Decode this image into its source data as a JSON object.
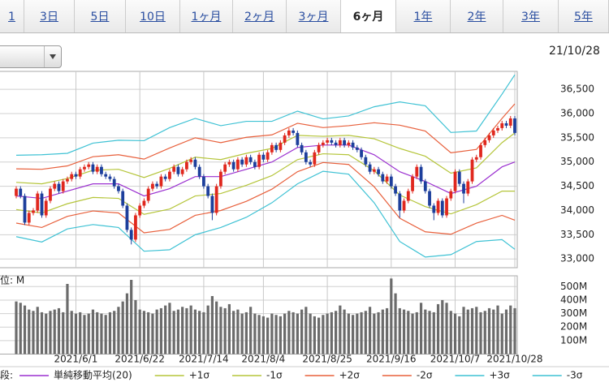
{
  "tabs": [
    {
      "label": "1",
      "selected": false
    },
    {
      "label": "3日",
      "selected": false
    },
    {
      "label": "5日",
      "selected": false
    },
    {
      "label": "10日",
      "selected": false
    },
    {
      "label": "1ヶ月",
      "selected": false
    },
    {
      "label": "2ヶ月",
      "selected": false
    },
    {
      "label": "3ヶ月",
      "selected": false
    },
    {
      "label": "6ヶ月",
      "selected": true
    },
    {
      "label": "1年",
      "selected": false
    },
    {
      "label": "2年",
      "selected": false
    },
    {
      "label": "3年",
      "selected": false
    },
    {
      "label": "5年",
      "selected": false
    }
  ],
  "date": "21/10/28",
  "chart_data": {
    "type": "candlestick",
    "categories": [
      null,
      null,
      null,
      null,
      null,
      null,
      null,
      null,
      null,
      null,
      null,
      null,
      null,
      null,
      "2021/6/1",
      null,
      null,
      null,
      null,
      null,
      null,
      null,
      null,
      null,
      null,
      null,
      null,
      null,
      null,
      "2021/6/22",
      null,
      null,
      null,
      null,
      null,
      null,
      null,
      null,
      null,
      null,
      null,
      null,
      null,
      null,
      "2021/7/14",
      null,
      null,
      null,
      null,
      null,
      null,
      null,
      null,
      null,
      null,
      null,
      null,
      null,
      "2021/8/4",
      null,
      null,
      null,
      null,
      null,
      null,
      null,
      null,
      null,
      null,
      null,
      null,
      null,
      null,
      "2021/8/25",
      null,
      null,
      null,
      null,
      null,
      null,
      null,
      null,
      null,
      null,
      null,
      null,
      null,
      null,
      "2021/9/16",
      null,
      null,
      null,
      null,
      null,
      null,
      null,
      null,
      null,
      null,
      null,
      null,
      null,
      null,
      "2021/10/7",
      null,
      null,
      null,
      null,
      null,
      null,
      null,
      null,
      null,
      null,
      null,
      null,
      null,
      "2021/10/28"
    ],
    "open": [
      34300,
      34450,
      34300,
      33750,
      33950,
      34000,
      34350,
      33900,
      34200,
      34450,
      34550,
      34400,
      34600,
      34650,
      34750,
      34700,
      34850,
      34900,
      34950,
      34800,
      34900,
      34750,
      34700,
      34650,
      34500,
      34400,
      34100,
      33600,
      33400,
      33900,
      34100,
      34200,
      34450,
      34550,
      34500,
      34700,
      34650,
      34800,
      34900,
      34750,
      34850,
      35000,
      35050,
      34900,
      34700,
      34500,
      34300,
      33950,
      34500,
      34800,
      34950,
      35000,
      34850,
      35050,
      34950,
      35100,
      35000,
      34900,
      35150,
      35050,
      35200,
      35350,
      35250,
      35400,
      35550,
      35650,
      35600,
      35350,
      35200,
      35000,
      34950,
      35200,
      35350,
      35400,
      35450,
      35400,
      35350,
      35450,
      35350,
      35400,
      35300,
      35250,
      35100,
      34950,
      34800,
      34850,
      34750,
      34600,
      34700,
      34500,
      34350,
      34000,
      34200,
      34400,
      34700,
      34900,
      34600,
      34400,
      34100,
      33950,
      34200,
      33900,
      34250,
      34400,
      34800,
      34550,
      34350,
      34600,
      35050,
      35100,
      35350,
      35450,
      35550,
      35650,
      35700,
      35800,
      35750,
      35900
    ],
    "high": [
      34500,
      34500,
      34350,
      34000,
      34050,
      34400,
      34400,
      34250,
      34500,
      34600,
      34600,
      34650,
      34700,
      34800,
      34800,
      34900,
      34950,
      35000,
      35000,
      34950,
      34950,
      34800,
      34750,
      34700,
      34550,
      34450,
      34150,
      33650,
      33950,
      34150,
      34250,
      34500,
      34600,
      34600,
      34750,
      34750,
      34850,
      34950,
      34950,
      34900,
      35050,
      35100,
      35100,
      34950,
      34750,
      34550,
      34350,
      34550,
      34850,
      35000,
      35050,
      35050,
      35100,
      35100,
      35150,
      35150,
      35050,
      35200,
      35200,
      35250,
      35400,
      35400,
      35450,
      35600,
      35700,
      35700,
      35650,
      35400,
      35250,
      35050,
      35250,
      35400,
      35450,
      35500,
      35500,
      35450,
      35500,
      35500,
      35450,
      35450,
      35350,
      35300,
      35150,
      35000,
      34900,
      34900,
      34800,
      34750,
      34750,
      34550,
      34400,
      34250,
      34450,
      34750,
      34950,
      34950,
      34650,
      34450,
      34150,
      34250,
      34250,
      34300,
      34450,
      34850,
      34850,
      34600,
      34650,
      35100,
      35150,
      35400,
      35500,
      35600,
      35700,
      35750,
      35850,
      35850,
      35950,
      35950
    ],
    "low": [
      34250,
      34250,
      33700,
      33700,
      33900,
      33950,
      33850,
      33850,
      34150,
      34400,
      34350,
      34350,
      34550,
      34600,
      34650,
      34650,
      34800,
      34850,
      34750,
      34750,
      34700,
      34650,
      34600,
      34450,
      34350,
      34050,
      33550,
      33300,
      33350,
      33850,
      34050,
      34150,
      34400,
      34450,
      34450,
      34600,
      34600,
      34750,
      34700,
      34700,
      34800,
      34950,
      34850,
      34650,
      34450,
      34250,
      33800,
      33900,
      34450,
      34750,
      34900,
      34800,
      34800,
      34900,
      34900,
      34950,
      34850,
      34850,
      35000,
      35000,
      35150,
      35200,
      35200,
      35350,
      35500,
      35550,
      35300,
      35150,
      34950,
      34900,
      34900,
      35150,
      35300,
      35350,
      35350,
      35300,
      35300,
      35300,
      35300,
      35250,
      35200,
      35050,
      34900,
      34750,
      34750,
      34700,
      34550,
      34550,
      34450,
      34300,
      33850,
      33950,
      34150,
      34350,
      34650,
      34550,
      34350,
      34050,
      33800,
      33900,
      33850,
      33850,
      34200,
      34350,
      34500,
      34150,
      34300,
      34550,
      35000,
      35050,
      35300,
      35400,
      35500,
      35600,
      35650,
      35700,
      35700,
      35550
    ],
    "close": [
      34450,
      34300,
      33750,
      33950,
      34000,
      34350,
      33900,
      34200,
      34450,
      34550,
      34400,
      34600,
      34650,
      34750,
      34700,
      34850,
      34900,
      34950,
      34800,
      34900,
      34750,
      34700,
      34650,
      34500,
      34400,
      34100,
      33600,
      33400,
      33900,
      34100,
      34200,
      34450,
      34550,
      34500,
      34700,
      34650,
      34800,
      34900,
      34750,
      34850,
      35000,
      35050,
      34900,
      34700,
      34500,
      34300,
      33950,
      34500,
      34800,
      34950,
      35000,
      34850,
      35050,
      34950,
      35100,
      35000,
      34900,
      35150,
      35050,
      35200,
      35350,
      35250,
      35400,
      35550,
      35650,
      35600,
      35350,
      35200,
      35000,
      34950,
      35200,
      35350,
      35400,
      35450,
      35400,
      35350,
      35450,
      35350,
      35400,
      35300,
      35250,
      35100,
      34950,
      34800,
      34850,
      34750,
      34600,
      34700,
      34500,
      34350,
      34000,
      34200,
      34400,
      34700,
      34900,
      34600,
      34400,
      34100,
      33950,
      34200,
      33900,
      34250,
      34400,
      34800,
      34550,
      34350,
      34600,
      35050,
      35100,
      35350,
      35450,
      35550,
      35650,
      35700,
      35800,
      35750,
      35900,
      35600
    ],
    "up_color": "#e0281e",
    "down_color": "#1d3f9c",
    "ylim": [
      32820,
      36870
    ],
    "yticks": [
      {
        "value": 33000,
        "label": "33,000"
      },
      {
        "value": 33500,
        "label": "33,500"
      },
      {
        "value": 34000,
        "label": "34,000"
      },
      {
        "value": 34500,
        "label": "34,500"
      },
      {
        "value": 35000,
        "label": "35,000"
      },
      {
        "value": 35500,
        "label": "35,500"
      },
      {
        "value": 36000,
        "label": "36,000"
      },
      {
        "value": 36500,
        "label": "36,500"
      }
    ],
    "legend_title": "段:",
    "series": [
      {
        "name": "単純移動平均(20)",
        "color": "#9b30d0",
        "x": [
          0,
          6,
          12,
          18,
          24,
          30,
          36,
          42,
          48,
          54,
          60,
          66,
          72,
          78,
          84,
          90,
          96,
          102,
          108,
          114,
          117
        ],
        "values": [
          34300,
          34250,
          34400,
          34550,
          34550,
          34300,
          34450,
          34700,
          34700,
          34850,
          35000,
          35300,
          35350,
          35350,
          35150,
          34800,
          34600,
          34350,
          34500,
          34900,
          35000
        ]
      },
      {
        "name": "+1σ",
        "color": "#b5c53a",
        "x": [
          0,
          6,
          12,
          18,
          24,
          30,
          36,
          42,
          48,
          54,
          60,
          66,
          72,
          78,
          84,
          90,
          96,
          102,
          108,
          114,
          117
        ],
        "values": [
          34580,
          34550,
          34660,
          34830,
          34850,
          34680,
          34870,
          35100,
          35050,
          35180,
          35280,
          35550,
          35530,
          35550,
          35480,
          35280,
          35120,
          34770,
          34880,
          35400,
          35600
        ]
      },
      {
        "name": "-1σ",
        "color": "#b5c53a",
        "x": [
          0,
          6,
          12,
          18,
          24,
          30,
          36,
          42,
          48,
          54,
          60,
          66,
          72,
          78,
          84,
          90,
          96,
          102,
          108,
          114,
          117
        ],
        "values": [
          34020,
          33950,
          34140,
          34270,
          34250,
          33920,
          34030,
          34300,
          34350,
          34520,
          34720,
          35050,
          35170,
          35150,
          34820,
          34320,
          34080,
          33930,
          34120,
          34400,
          34400
        ]
      },
      {
        "name": "+2σ",
        "color": "#e8603c",
        "x": [
          0,
          6,
          12,
          18,
          24,
          30,
          36,
          42,
          48,
          54,
          60,
          66,
          72,
          78,
          84,
          90,
          96,
          102,
          108,
          114,
          117
        ],
        "values": [
          34860,
          34850,
          34920,
          35110,
          35150,
          35060,
          35290,
          35500,
          35400,
          35510,
          35560,
          35800,
          35710,
          35750,
          35810,
          35760,
          35640,
          35190,
          35260,
          35900,
          36200
        ]
      },
      {
        "name": "-2σ",
        "color": "#e8603c",
        "x": [
          0,
          6,
          12,
          18,
          24,
          30,
          36,
          42,
          48,
          54,
          60,
          66,
          72,
          78,
          84,
          90,
          96,
          102,
          108,
          114,
          117
        ],
        "values": [
          33740,
          33650,
          33880,
          33990,
          33950,
          33540,
          33610,
          33900,
          34000,
          34190,
          34440,
          34800,
          34990,
          34950,
          34490,
          33840,
          33560,
          33510,
          33740,
          33900,
          33800
        ]
      },
      {
        "name": "+3σ",
        "color": "#3fc2d4",
        "x": [
          0,
          6,
          12,
          18,
          24,
          30,
          36,
          42,
          48,
          54,
          60,
          66,
          72,
          78,
          84,
          90,
          96,
          102,
          108,
          114,
          117
        ],
        "values": [
          35140,
          35150,
          35180,
          35390,
          35450,
          35440,
          35710,
          35900,
          35750,
          35840,
          35840,
          36050,
          35890,
          35950,
          36140,
          36240,
          36160,
          35610,
          35640,
          36400,
          36800
        ]
      },
      {
        "name": "-3σ",
        "color": "#3fc2d4",
        "x": [
          0,
          6,
          12,
          18,
          24,
          30,
          36,
          42,
          48,
          54,
          60,
          66,
          72,
          78,
          84,
          90,
          96,
          102,
          108,
          114,
          117
        ],
        "values": [
          33460,
          33350,
          33620,
          33710,
          33650,
          33160,
          33190,
          33500,
          33650,
          33860,
          34160,
          34550,
          34810,
          34750,
          34160,
          33360,
          33040,
          33090,
          33360,
          33400,
          33200
        ]
      }
    ],
    "volume": {
      "unit_label": "位: M",
      "color": "#6b6b6b",
      "ylim": [
        0,
        580
      ],
      "yticks": [
        {
          "value": 100,
          "label": "100M"
        },
        {
          "value": 200,
          "label": "200M"
        },
        {
          "value": 300,
          "label": "300M"
        },
        {
          "value": 400,
          "label": "400M"
        },
        {
          "value": 500,
          "label": "500M"
        }
      ],
      "values": [
        390,
        380,
        360,
        330,
        320,
        350,
        310,
        300,
        320,
        330,
        340,
        310,
        520,
        320,
        300,
        310,
        290,
        300,
        330,
        310,
        300,
        290,
        310,
        320,
        350,
        390,
        450,
        550,
        400,
        330,
        320,
        310,
        300,
        330,
        340,
        360,
        380,
        320,
        330,
        350,
        340,
        360,
        330,
        320,
        310,
        360,
        430,
        390,
        350,
        340,
        370,
        320,
        330,
        300,
        310,
        350,
        300,
        290,
        280,
        270,
        300,
        290,
        280,
        300,
        320,
        310,
        300,
        330,
        350,
        300,
        280,
        270,
        290,
        300,
        310,
        320,
        360,
        330,
        300,
        290,
        300,
        310,
        320,
        350,
        300,
        310,
        330,
        340,
        560,
        450,
        340,
        330,
        320,
        300,
        310,
        380,
        330,
        320,
        310,
        370,
        400,
        380,
        320,
        300,
        280,
        350,
        330,
        340,
        350,
        310,
        320,
        340,
        330,
        360,
        300,
        330,
        360,
        340
      ]
    }
  }
}
